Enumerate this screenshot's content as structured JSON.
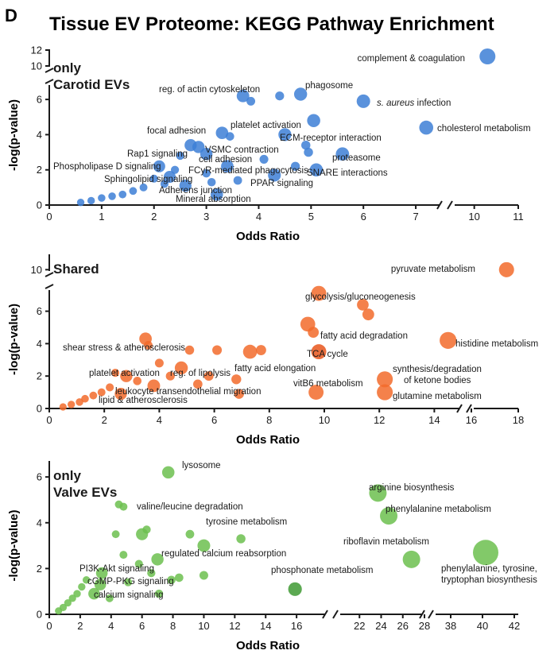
{
  "figure": {
    "panel_letter": "D",
    "title": "Tissue EV Proteome: KEGG Pathway Enrichment"
  },
  "colors": {
    "carotid": "#3d7fd6",
    "shared": "#f26b2b",
    "valve": "#6cbf4f",
    "shared_dark": "#e8561c",
    "valve_dark": "#3f9a34"
  },
  "chart_data": [
    {
      "type": "scatter",
      "title": "only Carotid EVs",
      "title_lines": [
        "only",
        "Carotid EVs"
      ],
      "xlabel": "Odds Ratio",
      "ylabel": "-log(p-value)",
      "x_ticks": [
        "0",
        "1",
        "2",
        "3",
        "4",
        "5",
        "6",
        "7",
        "10",
        "11"
      ],
      "y_ticks": [
        "0",
        "2",
        "4",
        "6",
        "10",
        "12"
      ],
      "x_break": [
        7.5,
        9.5
      ],
      "y_break": [
        7,
        9.5
      ],
      "points": [
        {
          "x": 10.3,
          "y": 11.2,
          "label": "complement & coagulation"
        },
        {
          "x": 3.7,
          "y": 6.2,
          "label": "reg. of actin cytoskeleton"
        },
        {
          "x": 3.85,
          "y": 5.9,
          "label": ""
        },
        {
          "x": 4.4,
          "y": 6.2,
          "label": ""
        },
        {
          "x": 4.8,
          "y": 6.3,
          "label": "phagosome"
        },
        {
          "x": 6.0,
          "y": 5.9,
          "label": "s. aureus infection",
          "label_italic_prefix": "s. aureus"
        },
        {
          "x": 3.3,
          "y": 4.1,
          "label": "focal adhesion"
        },
        {
          "x": 3.45,
          "y": 3.9,
          "label": ""
        },
        {
          "x": 5.05,
          "y": 4.8,
          "label": "platelet activation"
        },
        {
          "x": 4.5,
          "y": 4.0,
          "label": "ECM-receptor interaction"
        },
        {
          "x": 7.2,
          "y": 4.4,
          "label": "cholesterol metabolism"
        },
        {
          "x": 2.7,
          "y": 3.4,
          "label": "Rap1 signaling"
        },
        {
          "x": 2.85,
          "y": 3.3,
          "label": "VSMC contraction"
        },
        {
          "x": 3.0,
          "y": 2.9,
          "label": "cell adhesion"
        },
        {
          "x": 3.4,
          "y": 2.2,
          "label": "FCyR-mediated phagocytosis"
        },
        {
          "x": 5.6,
          "y": 2.9,
          "label": "proteasome"
        },
        {
          "x": 4.9,
          "y": 3.4,
          "label": ""
        },
        {
          "x": 4.95,
          "y": 3.0,
          "label": ""
        },
        {
          "x": 5.1,
          "y": 2.0,
          "label": "SNARE interactions"
        },
        {
          "x": 4.3,
          "y": 1.7,
          "label": "PPAR signaling"
        },
        {
          "x": 2.1,
          "y": 2.2,
          "label": "Phospholipase D signaling"
        },
        {
          "x": 2.3,
          "y": 1.6,
          "label": "Sphingolipid signaling"
        },
        {
          "x": 2.6,
          "y": 1.1,
          "label": "Adherens junction"
        },
        {
          "x": 3.2,
          "y": 0.6,
          "label": "Mineral absorption"
        },
        {
          "x": 3.0,
          "y": 1.8,
          "label": ""
        },
        {
          "x": 2.5,
          "y": 2.8,
          "label": ""
        },
        {
          "x": 4.7,
          "y": 2.2,
          "label": ""
        },
        {
          "x": 4.1,
          "y": 2.6,
          "label": ""
        },
        {
          "x": 2.2,
          "y": 1.2,
          "label": ""
        },
        {
          "x": 1.8,
          "y": 1.0,
          "label": ""
        },
        {
          "x": 1.6,
          "y": 0.8,
          "label": ""
        },
        {
          "x": 1.4,
          "y": 0.6,
          "label": ""
        },
        {
          "x": 1.2,
          "y": 0.5,
          "label": ""
        },
        {
          "x": 1.0,
          "y": 0.4,
          "label": ""
        },
        {
          "x": 0.8,
          "y": 0.25,
          "label": ""
        },
        {
          "x": 0.6,
          "y": 0.15,
          "label": ""
        },
        {
          "x": 2.0,
          "y": 1.5,
          "label": ""
        },
        {
          "x": 2.4,
          "y": 2.0,
          "label": ""
        },
        {
          "x": 3.6,
          "y": 1.4,
          "label": ""
        },
        {
          "x": 3.1,
          "y": 1.3,
          "label": ""
        }
      ]
    },
    {
      "type": "scatter",
      "title": "Shared",
      "title_lines": [
        "Shared"
      ],
      "xlabel": "Odds Ratio",
      "ylabel": "-log(p-value)",
      "x_ticks": [
        "0",
        "2",
        "4",
        "6",
        "8",
        "10",
        "12",
        "14",
        "16",
        "18"
      ],
      "y_ticks": [
        "0",
        "2",
        "4",
        "6",
        "10"
      ],
      "x_break": [
        15,
        16
      ],
      "y_break": [
        7.5,
        9.5
      ],
      "points": [
        {
          "x": 17.5,
          "y": 10.0,
          "label": "pyruvate metabolism"
        },
        {
          "x": 9.8,
          "y": 7.1,
          "label": "glycolysis/gluconeogenesis"
        },
        {
          "x": 11.4,
          "y": 6.4,
          "label": ""
        },
        {
          "x": 11.6,
          "y": 5.8,
          "label": ""
        },
        {
          "x": 9.4,
          "y": 5.2,
          "label": "fatty acid degradation"
        },
        {
          "x": 9.6,
          "y": 4.7,
          "label": ""
        },
        {
          "x": 14.5,
          "y": 4.2,
          "label": "histidine metabolism"
        },
        {
          "x": 9.8,
          "y": 3.5,
          "label": "TCA cycle"
        },
        {
          "x": 12.2,
          "y": 1.8,
          "label": "synthesis/degradation of ketone bodies"
        },
        {
          "x": 12.2,
          "y": 1.0,
          "label": "glutamine metabolism"
        },
        {
          "x": 9.7,
          "y": 1.0,
          "label": "vitB6 metabolism"
        },
        {
          "x": 7.3,
          "y": 3.5,
          "label": "fatty acid elongation"
        },
        {
          "x": 7.7,
          "y": 3.6,
          "label": ""
        },
        {
          "x": 3.5,
          "y": 4.3,
          "label": "shear stress & atherosclerosis"
        },
        {
          "x": 3.6,
          "y": 3.9,
          "label": ""
        },
        {
          "x": 5.1,
          "y": 3.6,
          "label": ""
        },
        {
          "x": 6.1,
          "y": 3.6,
          "label": ""
        },
        {
          "x": 4.8,
          "y": 2.5,
          "label": "reg. of lipolysis"
        },
        {
          "x": 2.8,
          "y": 2.0,
          "label": "platelet activation"
        },
        {
          "x": 3.8,
          "y": 1.4,
          "label": "leukocyte transendothelial migration"
        },
        {
          "x": 2.6,
          "y": 0.9,
          "label": "lipid & atherosclerosis"
        },
        {
          "x": 6.9,
          "y": 0.9,
          "label": ""
        },
        {
          "x": 6.8,
          "y": 1.8,
          "label": ""
        },
        {
          "x": 5.8,
          "y": 2.0,
          "label": ""
        },
        {
          "x": 4.4,
          "y": 2.0,
          "label": ""
        },
        {
          "x": 4.0,
          "y": 2.8,
          "label": ""
        },
        {
          "x": 3.2,
          "y": 1.7,
          "label": ""
        },
        {
          "x": 2.2,
          "y": 1.3,
          "label": ""
        },
        {
          "x": 1.9,
          "y": 1.0,
          "label": ""
        },
        {
          "x": 1.6,
          "y": 0.8,
          "label": ""
        },
        {
          "x": 1.3,
          "y": 0.6,
          "label": ""
        },
        {
          "x": 1.1,
          "y": 0.4,
          "label": ""
        },
        {
          "x": 0.8,
          "y": 0.25,
          "label": ""
        },
        {
          "x": 0.5,
          "y": 0.1,
          "label": ""
        },
        {
          "x": 5.4,
          "y": 1.5,
          "label": ""
        },
        {
          "x": 2.4,
          "y": 2.2,
          "label": ""
        }
      ]
    },
    {
      "type": "scatter",
      "title": "only Valve EVs",
      "title_lines": [
        "only",
        "Valve EVs"
      ],
      "xlabel": "Odds Ratio",
      "ylabel": "-log(p-value)",
      "x_ticks": [
        "0",
        "2",
        "4",
        "6",
        "8",
        "10",
        "12",
        "14",
        "16",
        "22",
        "24",
        "26",
        "28",
        "38",
        "40",
        "42"
      ],
      "y_ticks": [
        "0",
        "2",
        "4",
        "6"
      ],
      "x_break": [
        18,
        20
      ],
      "points": [
        {
          "x": 7.7,
          "y": 6.2,
          "label": "lysosome"
        },
        {
          "x": 4.5,
          "y": 4.8,
          "label": ""
        },
        {
          "x": 4.8,
          "y": 4.7,
          "label": ""
        },
        {
          "x": 6.0,
          "y": 3.5,
          "label": "valine/leucine degradation"
        },
        {
          "x": 6.3,
          "y": 3.7,
          "label": ""
        },
        {
          "x": 9.1,
          "y": 3.5,
          "label": ""
        },
        {
          "x": 10.0,
          "y": 3.0,
          "label": "tyrosine metabolism"
        },
        {
          "x": 12.4,
          "y": 3.3,
          "label": ""
        },
        {
          "x": 7.0,
          "y": 2.4,
          "label": "regulated calcium reabsorption"
        },
        {
          "x": 3.4,
          "y": 1.8,
          "label": "PI3K-Akt signaling"
        },
        {
          "x": 3.3,
          "y": 1.3,
          "label": "cGMP-PKG signaling"
        },
        {
          "x": 2.9,
          "y": 0.9,
          "label": "calcium signaling"
        },
        {
          "x": 10.0,
          "y": 1.7,
          "label": ""
        },
        {
          "x": 15.9,
          "y": 1.1,
          "label": "phosphonate metabolism"
        },
        {
          "x": 23.7,
          "y": 5.3,
          "label": "arginine biosynthesis"
        },
        {
          "x": 24.7,
          "y": 4.3,
          "label": "phenylalanine metabolism"
        },
        {
          "x": 26.8,
          "y": 2.4,
          "label": "riboflavin metabolism"
        },
        {
          "x": 40.2,
          "y": 2.7,
          "label": "phenylalanine, tyrosine, tryptophan biosynthesis"
        },
        {
          "x": 5.8,
          "y": 2.2,
          "label": ""
        },
        {
          "x": 4.8,
          "y": 2.6,
          "label": ""
        },
        {
          "x": 4.3,
          "y": 3.5,
          "label": ""
        },
        {
          "x": 7.9,
          "y": 1.5,
          "label": ""
        },
        {
          "x": 8.4,
          "y": 1.6,
          "label": ""
        },
        {
          "x": 6.6,
          "y": 1.8,
          "label": ""
        },
        {
          "x": 5.1,
          "y": 1.4,
          "label": ""
        },
        {
          "x": 2.4,
          "y": 1.5,
          "label": ""
        },
        {
          "x": 2.1,
          "y": 1.2,
          "label": ""
        },
        {
          "x": 1.8,
          "y": 0.9,
          "label": ""
        },
        {
          "x": 1.5,
          "y": 0.7,
          "label": ""
        },
        {
          "x": 1.2,
          "y": 0.5,
          "label": ""
        },
        {
          "x": 0.9,
          "y": 0.3,
          "label": ""
        },
        {
          "x": 0.6,
          "y": 0.15,
          "label": ""
        },
        {
          "x": 3.9,
          "y": 0.7,
          "label": ""
        },
        {
          "x": 7.1,
          "y": 0.9,
          "label": ""
        }
      ]
    }
  ]
}
